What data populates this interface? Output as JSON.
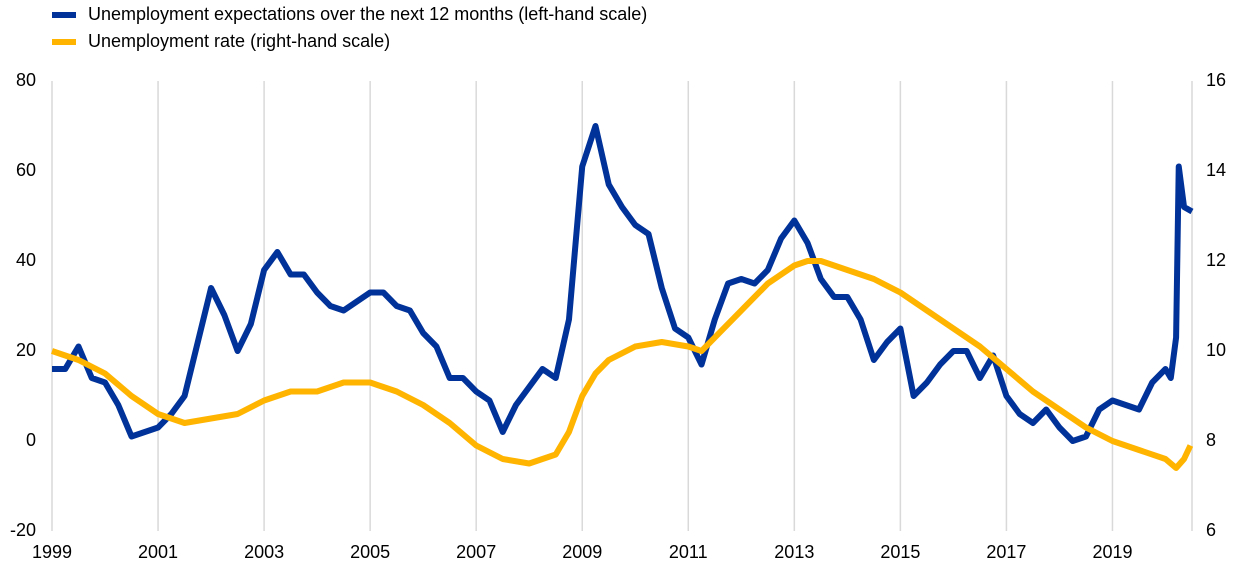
{
  "chart_data": {
    "type": "line",
    "xlim": [
      1999,
      2020.5
    ],
    "xticks": [
      1999,
      2001,
      2003,
      2005,
      2007,
      2009,
      2011,
      2013,
      2015,
      2017,
      2019
    ],
    "ylim": [
      -20,
      80
    ],
    "yticks": [
      -20,
      0,
      20,
      40,
      60,
      80
    ],
    "y2lim": [
      6,
      16
    ],
    "y2ticks": [
      6,
      8,
      10,
      12,
      14,
      16
    ],
    "grid": true,
    "legend": "top-left",
    "series": [
      {
        "name": "Unemployment expectations over the next 12 months (left-hand scale)",
        "color": "#003299",
        "x": [
          1999,
          1999.25,
          1999.5,
          1999.75,
          2000,
          2000.25,
          2000.5,
          2000.75,
          2001,
          2001.25,
          2001.5,
          2001.75,
          2002,
          2002.25,
          2002.5,
          2002.75,
          2003,
          2003.25,
          2003.5,
          2003.75,
          2004,
          2004.25,
          2004.5,
          2004.75,
          2005,
          2005.25,
          2005.5,
          2005.75,
          2006,
          2006.25,
          2006.5,
          2006.75,
          2007,
          2007.25,
          2007.5,
          2007.75,
          2008,
          2008.25,
          2008.5,
          2008.75,
          2009,
          2009.25,
          2009.5,
          2009.75,
          2010,
          2010.25,
          2010.5,
          2010.75,
          2011,
          2011.25,
          2011.5,
          2011.75,
          2012,
          2012.25,
          2012.5,
          2012.75,
          2013,
          2013.25,
          2013.5,
          2013.75,
          2014,
          2014.25,
          2014.5,
          2014.75,
          2015,
          2015.25,
          2015.5,
          2015.75,
          2016,
          2016.25,
          2016.5,
          2016.75,
          2017,
          2017.25,
          2017.5,
          2017.75,
          2018,
          2018.25,
          2018.5,
          2018.75,
          2019,
          2019.25,
          2019.5,
          2019.75,
          2020,
          2020.1,
          2020.2,
          2020.25,
          2020.35,
          2020.5
        ],
        "values": [
          16,
          16,
          21,
          14,
          13,
          8,
          1,
          2,
          3,
          6,
          10,
          22,
          34,
          28,
          20,
          26,
          38,
          42,
          37,
          37,
          33,
          30,
          29,
          31,
          33,
          33,
          30,
          29,
          24,
          21,
          14,
          14,
          11,
          9,
          2,
          8,
          12,
          16,
          14,
          27,
          61,
          70,
          57,
          52,
          48,
          46,
          34,
          25,
          23,
          17,
          27,
          35,
          36,
          35,
          38,
          45,
          49,
          44,
          36,
          32,
          32,
          27,
          18,
          22,
          25,
          10,
          13,
          17,
          20,
          20,
          14,
          19,
          10,
          6,
          4,
          7,
          3,
          0,
          1,
          7,
          9,
          8,
          7,
          13,
          16,
          14,
          23,
          61,
          52,
          51
        ]
      },
      {
        "name": "Unemployment rate (right-hand scale)",
        "color": "#ffb400",
        "axis": "y2",
        "x": [
          1999,
          1999.5,
          2000,
          2000.5,
          2001,
          2001.5,
          2002,
          2002.5,
          2003,
          2003.5,
          2004,
          2004.5,
          2005,
          2005.5,
          2006,
          2006.5,
          2007,
          2007.5,
          2008,
          2008.5,
          2008.75,
          2009,
          2009.25,
          2009.5,
          2010,
          2010.5,
          2011,
          2011.25,
          2011.5,
          2012,
          2012.5,
          2013,
          2013.25,
          2013.5,
          2014,
          2014.5,
          2015,
          2015.5,
          2016,
          2016.5,
          2017,
          2017.5,
          2018,
          2018.5,
          2019,
          2019.5,
          2020,
          2020.2,
          2020.35,
          2020.47
        ],
        "values": [
          10.0,
          9.8,
          9.5,
          9.0,
          8.6,
          8.4,
          8.5,
          8.6,
          8.9,
          9.1,
          9.1,
          9.3,
          9.3,
          9.1,
          8.8,
          8.4,
          7.9,
          7.6,
          7.5,
          7.7,
          8.2,
          9.0,
          9.5,
          9.8,
          10.1,
          10.2,
          10.1,
          10.0,
          10.3,
          10.9,
          11.5,
          11.9,
          12.0,
          12.0,
          11.8,
          11.6,
          11.3,
          10.9,
          10.5,
          10.1,
          9.6,
          9.1,
          8.7,
          8.3,
          8.0,
          7.8,
          7.6,
          7.4,
          7.6,
          7.9
        ]
      }
    ]
  }
}
